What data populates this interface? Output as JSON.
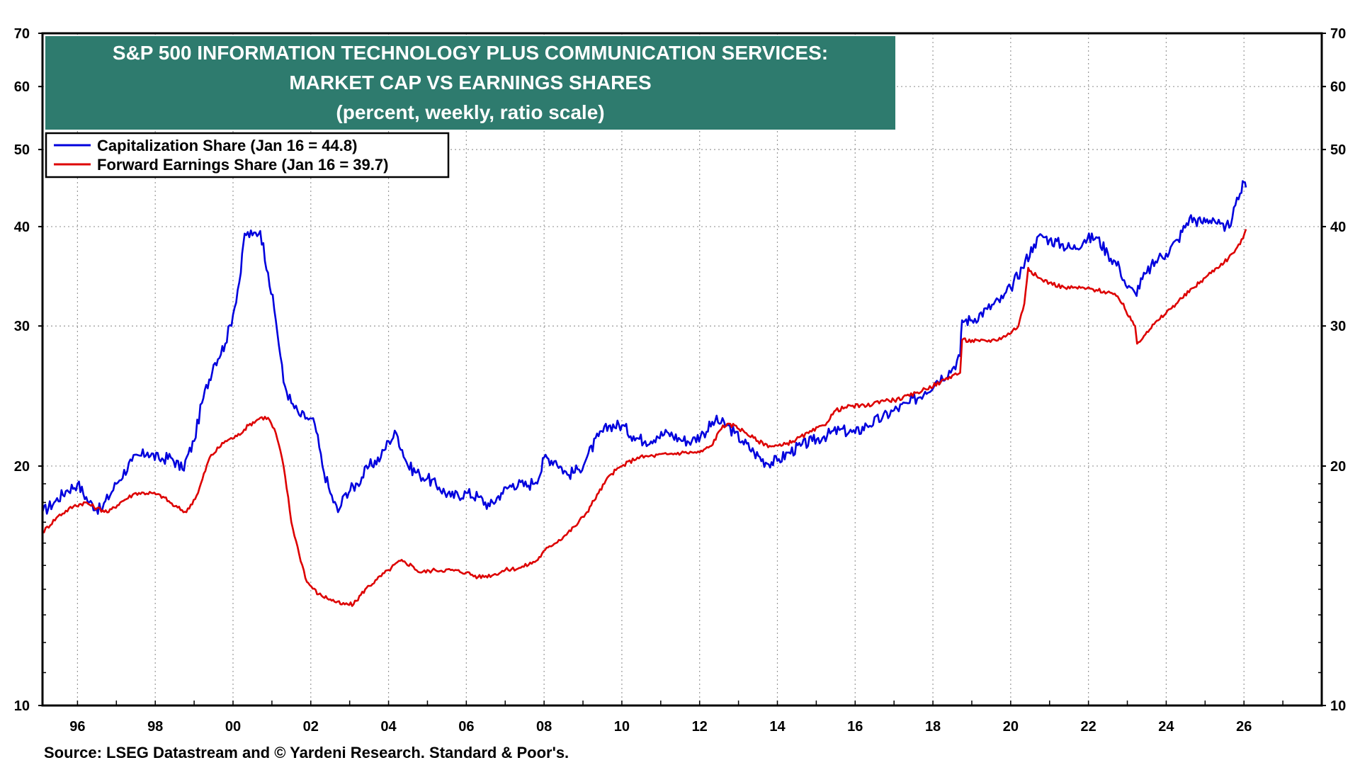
{
  "chart_data": {
    "type": "line",
    "title_lines": [
      "S&P 500 INFORMATION TECHNOLOGY PLUS COMMUNICATION SERVICES:",
      "MARKET CAP VS EARNINGS SHARES",
      "(percent, weekly, ratio scale)"
    ],
    "y_scale": "log",
    "ylim": [
      10,
      70
    ],
    "y_ticks": [
      10,
      20,
      30,
      40,
      50,
      60,
      70
    ],
    "xlim": [
      1995.1,
      2028.0
    ],
    "x_ticks": [
      1996,
      1998,
      2000,
      2002,
      2004,
      2006,
      2008,
      2010,
      2012,
      2014,
      2016,
      2018,
      2020,
      2022,
      2024,
      2026
    ],
    "x_tick_labels": [
      "96",
      "98",
      "00",
      "02",
      "04",
      "06",
      "08",
      "10",
      "12",
      "14",
      "16",
      "18",
      "20",
      "22",
      "24",
      "26"
    ],
    "grid": true,
    "legend_position": "top-left",
    "series": [
      {
        "name": "Capitalization Share  (Jan 16 = 44.8)",
        "color": "#0000dd",
        "points": [
          [
            1995.1,
            17.5
          ],
          [
            1995.4,
            18.0
          ],
          [
            1995.7,
            18.6
          ],
          [
            1996.0,
            19.0
          ],
          [
            1996.3,
            18.0
          ],
          [
            1996.6,
            17.6
          ],
          [
            1997.0,
            19.0
          ],
          [
            1997.4,
            20.3
          ],
          [
            1997.8,
            20.8
          ],
          [
            1998.1,
            20.4
          ],
          [
            1998.4,
            20.5
          ],
          [
            1998.7,
            19.8
          ],
          [
            1999.0,
            21.5
          ],
          [
            1999.2,
            24.0
          ],
          [
            1999.5,
            26.8
          ],
          [
            1999.8,
            28.5
          ],
          [
            2000.0,
            31.0
          ],
          [
            2000.2,
            35.0
          ],
          [
            2000.3,
            39.2
          ],
          [
            2000.5,
            39.0
          ],
          [
            2000.7,
            39.5
          ],
          [
            2000.9,
            35.0
          ],
          [
            2001.1,
            30.5
          ],
          [
            2001.3,
            25.5
          ],
          [
            2001.5,
            24.0
          ],
          [
            2001.7,
            23.2
          ],
          [
            2001.9,
            23.0
          ],
          [
            2002.1,
            22.6
          ],
          [
            2002.3,
            20.0
          ],
          [
            2002.5,
            18.5
          ],
          [
            2002.7,
            17.5
          ],
          [
            2002.9,
            18.5
          ],
          [
            2003.2,
            19.0
          ],
          [
            2003.5,
            20.0
          ],
          [
            2003.8,
            20.5
          ],
          [
            2004.0,
            21.5
          ],
          [
            2004.2,
            22.0
          ],
          [
            2004.5,
            20.0
          ],
          [
            2004.8,
            19.5
          ],
          [
            2005.0,
            19.3
          ],
          [
            2005.3,
            18.8
          ],
          [
            2005.6,
            18.3
          ],
          [
            2006.0,
            18.5
          ],
          [
            2006.3,
            18.3
          ],
          [
            2006.6,
            17.8
          ],
          [
            2006.9,
            18.5
          ],
          [
            2007.2,
            19.0
          ],
          [
            2007.6,
            18.9
          ],
          [
            2007.9,
            19.5
          ],
          [
            2008.0,
            20.5
          ],
          [
            2008.3,
            20.3
          ],
          [
            2008.6,
            19.5
          ],
          [
            2008.9,
            19.8
          ],
          [
            2009.1,
            20.5
          ],
          [
            2009.4,
            21.8
          ],
          [
            2009.7,
            22.5
          ],
          [
            2010.0,
            22.5
          ],
          [
            2010.3,
            21.8
          ],
          [
            2010.6,
            21.5
          ],
          [
            2010.9,
            21.8
          ],
          [
            2011.2,
            22.0
          ],
          [
            2011.5,
            21.6
          ],
          [
            2011.8,
            21.5
          ],
          [
            2012.1,
            22.0
          ],
          [
            2012.4,
            22.8
          ],
          [
            2012.7,
            22.5
          ],
          [
            2012.9,
            22.0
          ],
          [
            2013.1,
            21.5
          ],
          [
            2013.4,
            20.8
          ],
          [
            2013.7,
            20.2
          ],
          [
            2014.0,
            20.3
          ],
          [
            2014.3,
            20.8
          ],
          [
            2014.6,
            21.2
          ],
          [
            2014.9,
            21.5
          ],
          [
            2015.2,
            21.8
          ],
          [
            2015.6,
            22.2
          ],
          [
            2016.0,
            22.0
          ],
          [
            2016.3,
            22.5
          ],
          [
            2016.7,
            23.0
          ],
          [
            2017.0,
            23.5
          ],
          [
            2017.4,
            24.0
          ],
          [
            2017.8,
            24.8
          ],
          [
            2018.1,
            25.6
          ],
          [
            2018.5,
            26.5
          ],
          [
            2018.7,
            27.5
          ],
          [
            2018.75,
            30.5
          ],
          [
            2019.0,
            30.5
          ],
          [
            2019.4,
            31.5
          ],
          [
            2019.8,
            32.5
          ],
          [
            2020.0,
            33.5
          ],
          [
            2020.3,
            35.5
          ],
          [
            2020.6,
            38.0
          ],
          [
            2020.8,
            39.0
          ],
          [
            2021.0,
            38.5
          ],
          [
            2021.3,
            38.0
          ],
          [
            2021.6,
            37.5
          ],
          [
            2021.9,
            38.5
          ],
          [
            2022.2,
            38.8
          ],
          [
            2022.5,
            37.0
          ],
          [
            2022.8,
            35.5
          ],
          [
            2023.0,
            33.5
          ],
          [
            2023.2,
            33.0
          ],
          [
            2023.5,
            35.0
          ],
          [
            2023.8,
            36.5
          ],
          [
            2024.0,
            37.0
          ],
          [
            2024.3,
            38.5
          ],
          [
            2024.6,
            41.0
          ],
          [
            2024.9,
            40.5
          ],
          [
            2025.2,
            41.0
          ],
          [
            2025.5,
            39.5
          ],
          [
            2025.7,
            41.0
          ],
          [
            2025.9,
            44.0
          ],
          [
            2026.0,
            45.5
          ],
          [
            2026.05,
            44.8
          ]
        ]
      },
      {
        "name": "Forward Earnings Share (Jan 16 = 39.7)",
        "color": "#dd0000",
        "points": [
          [
            1995.1,
            16.5
          ],
          [
            1995.5,
            17.3
          ],
          [
            1995.9,
            17.8
          ],
          [
            1996.2,
            18.0
          ],
          [
            1996.5,
            17.7
          ],
          [
            1996.8,
            17.5
          ],
          [
            1997.1,
            18.0
          ],
          [
            1997.5,
            18.5
          ],
          [
            1997.9,
            18.5
          ],
          [
            1998.2,
            18.3
          ],
          [
            1998.5,
            17.8
          ],
          [
            1998.8,
            17.5
          ],
          [
            1999.1,
            18.5
          ],
          [
            1999.4,
            20.5
          ],
          [
            1999.8,
            21.5
          ],
          [
            2000.1,
            21.8
          ],
          [
            2000.4,
            22.5
          ],
          [
            2000.7,
            23.0
          ],
          [
            2000.9,
            23.0
          ],
          [
            2001.1,
            22.0
          ],
          [
            2001.3,
            20.0
          ],
          [
            2001.5,
            17.0
          ],
          [
            2001.7,
            15.5
          ],
          [
            2001.9,
            14.3
          ],
          [
            2002.2,
            13.8
          ],
          [
            2002.5,
            13.6
          ],
          [
            2002.8,
            13.4
          ],
          [
            2003.1,
            13.4
          ],
          [
            2003.4,
            14.0
          ],
          [
            2003.7,
            14.4
          ],
          [
            2004.0,
            14.8
          ],
          [
            2004.3,
            15.2
          ],
          [
            2004.6,
            15.0
          ],
          [
            2004.8,
            14.7
          ],
          [
            2005.2,
            14.8
          ],
          [
            2005.6,
            14.8
          ],
          [
            2006.0,
            14.7
          ],
          [
            2006.3,
            14.5
          ],
          [
            2006.7,
            14.6
          ],
          [
            2007.0,
            14.8
          ],
          [
            2007.4,
            14.9
          ],
          [
            2007.8,
            15.2
          ],
          [
            2008.1,
            15.8
          ],
          [
            2008.5,
            16.3
          ],
          [
            2008.8,
            16.8
          ],
          [
            2009.1,
            17.5
          ],
          [
            2009.4,
            18.5
          ],
          [
            2009.7,
            19.5
          ],
          [
            2010.0,
            20.0
          ],
          [
            2010.4,
            20.5
          ],
          [
            2010.8,
            20.6
          ],
          [
            2011.2,
            20.7
          ],
          [
            2011.6,
            20.8
          ],
          [
            2012.0,
            20.8
          ],
          [
            2012.3,
            21.2
          ],
          [
            2012.6,
            22.5
          ],
          [
            2012.9,
            22.5
          ],
          [
            2013.2,
            22.0
          ],
          [
            2013.5,
            21.5
          ],
          [
            2013.8,
            21.2
          ],
          [
            2014.1,
            21.2
          ],
          [
            2014.4,
            21.5
          ],
          [
            2014.8,
            22.0
          ],
          [
            2015.2,
            22.5
          ],
          [
            2015.5,
            23.5
          ],
          [
            2015.9,
            23.8
          ],
          [
            2016.3,
            23.8
          ],
          [
            2016.7,
            24.2
          ],
          [
            2017.0,
            24.2
          ],
          [
            2017.4,
            24.5
          ],
          [
            2017.8,
            25.0
          ],
          [
            2018.2,
            25.5
          ],
          [
            2018.5,
            26.0
          ],
          [
            2018.7,
            26.2
          ],
          [
            2018.75,
            28.8
          ],
          [
            2019.2,
            28.7
          ],
          [
            2019.6,
            28.8
          ],
          [
            2019.9,
            29.2
          ],
          [
            2020.2,
            30.0
          ],
          [
            2020.35,
            32.0
          ],
          [
            2020.45,
            35.5
          ],
          [
            2020.7,
            34.5
          ],
          [
            2021.0,
            34.0
          ],
          [
            2021.4,
            33.5
          ],
          [
            2021.8,
            33.5
          ],
          [
            2022.2,
            33.3
          ],
          [
            2022.6,
            33.0
          ],
          [
            2022.9,
            32.0
          ],
          [
            2023.0,
            31.0
          ],
          [
            2023.1,
            30.5
          ],
          [
            2023.2,
            30.0
          ],
          [
            2023.25,
            28.5
          ],
          [
            2023.5,
            29.5
          ],
          [
            2023.8,
            30.5
          ],
          [
            2024.1,
            31.5
          ],
          [
            2024.4,
            32.5
          ],
          [
            2024.7,
            33.5
          ],
          [
            2025.0,
            34.5
          ],
          [
            2025.3,
            35.5
          ],
          [
            2025.6,
            36.5
          ],
          [
            2025.9,
            38.0
          ],
          [
            2026.05,
            39.7
          ]
        ]
      }
    ],
    "source": "Source: LSEG Datastream and © Yardeni Research. Standard & Poor's."
  }
}
